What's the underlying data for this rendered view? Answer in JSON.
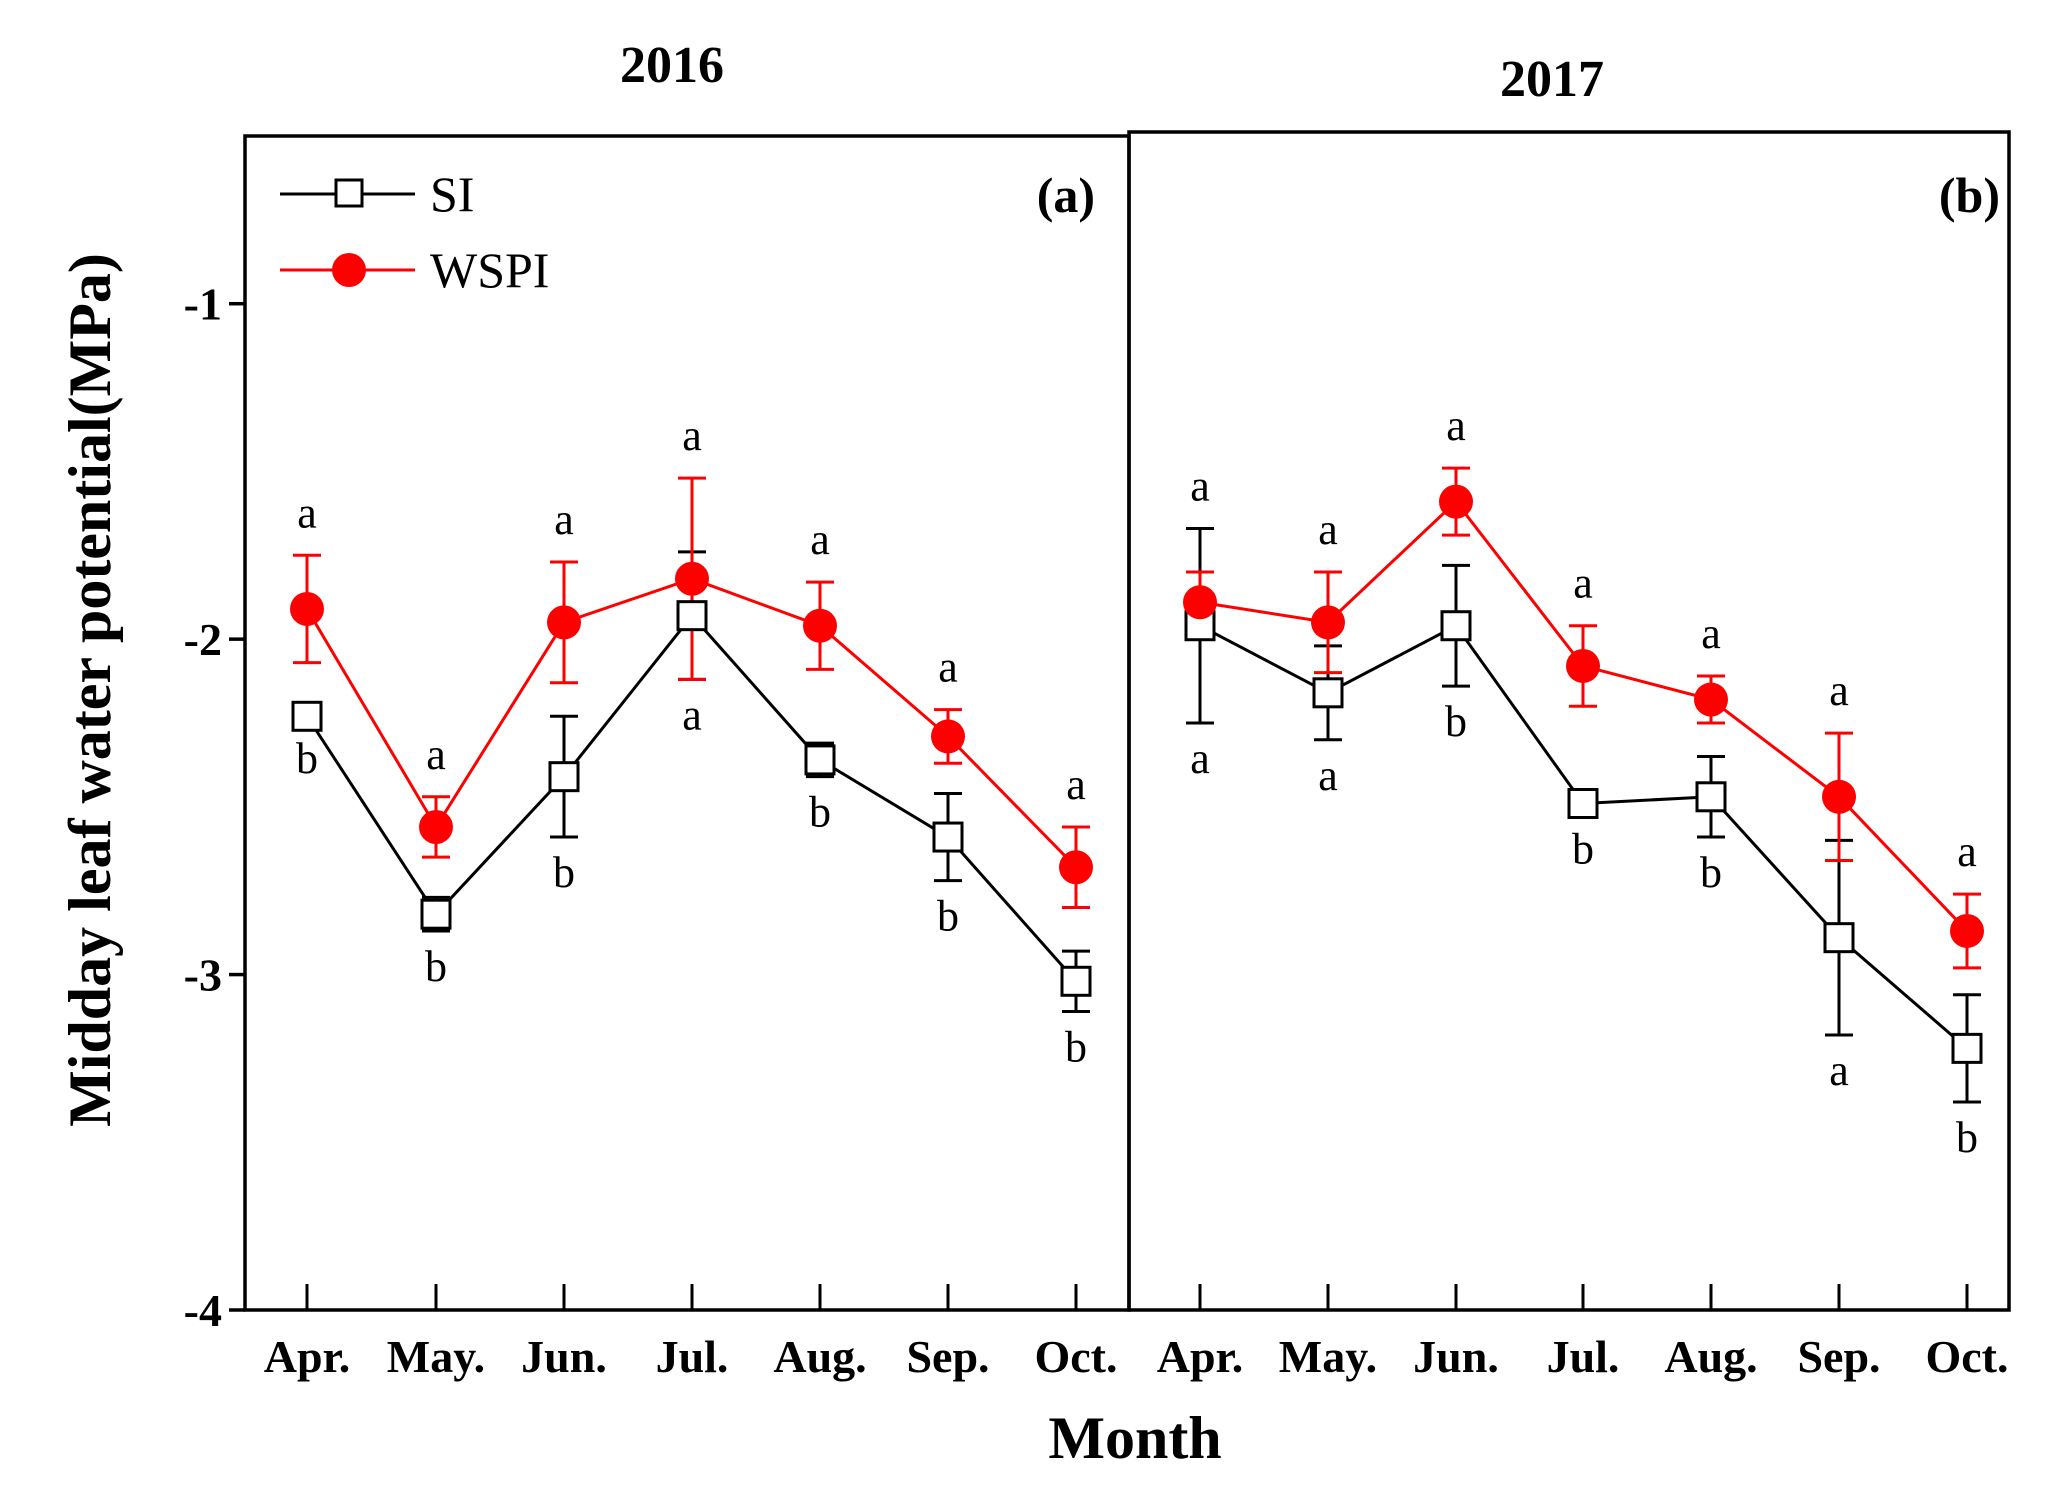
{
  "chart_data": {
    "type": "line",
    "ylabel": "Midday leaf water potential(MPa)",
    "xlabel": "Month",
    "ylim": [
      -4,
      -0.5
    ],
    "yticks": [
      -1,
      -2,
      -3,
      -4
    ],
    "ytick_labels": [
      "-1",
      "-2",
      "-3",
      "-4"
    ],
    "categories": [
      "Apr.",
      "May.",
      "Jun.",
      "Jul.",
      "Aug.",
      "Sep.",
      "Oct."
    ],
    "legend": {
      "position": "top-left",
      "entries": [
        {
          "name": "SI",
          "marker": "open-square",
          "color": "#000000"
        },
        {
          "name": "WSPI",
          "marker": "filled-circle",
          "color": "#ff0000"
        }
      ]
    },
    "panels": [
      {
        "year": "2016",
        "label": "(a)",
        "series": [
          {
            "name": "SI",
            "values": [
              -2.23,
              -2.82,
              -2.41,
              -1.93,
              -2.36,
              -2.59,
              -3.02
            ],
            "errors": [
              0.02,
              0.05,
              0.18,
              0.19,
              0.05,
              0.13,
              0.09
            ],
            "letters": [
              "b",
              "b",
              "b",
              "a",
              "b",
              "b",
              "b"
            ]
          },
          {
            "name": "WSPI",
            "values": [
              -1.91,
              -2.56,
              -1.95,
              -1.82,
              -1.96,
              -2.29,
              -2.68
            ],
            "errors": [
              0.16,
              0.09,
              0.18,
              0.3,
              0.13,
              0.08,
              0.12
            ],
            "letters": [
              "a",
              "a",
              "a",
              "a",
              "a",
              "a",
              "a"
            ]
          }
        ]
      },
      {
        "year": "2017",
        "label": "(b)",
        "series": [
          {
            "name": "SI",
            "values": [
              -1.96,
              -2.16,
              -1.96,
              -2.49,
              -2.47,
              -2.89,
              -3.22
            ],
            "errors": [
              0.29,
              0.14,
              0.18,
              0.03,
              0.12,
              0.29,
              0.16
            ],
            "letters": [
              "a",
              "a",
              "b",
              "b",
              "b",
              "a",
              "b"
            ]
          },
          {
            "name": "WSPI",
            "values": [
              -1.89,
              -1.95,
              -1.59,
              -2.08,
              -2.18,
              -2.47,
              -2.87
            ],
            "errors": [
              0.09,
              0.15,
              0.1,
              0.12,
              0.07,
              0.19,
              0.11
            ],
            "letters": [
              "a",
              "a",
              "a",
              "a",
              "a",
              "a",
              "a"
            ]
          }
        ]
      }
    ],
    "colors": {
      "SI": "#000000",
      "WSPI": "#ff0000"
    }
  }
}
